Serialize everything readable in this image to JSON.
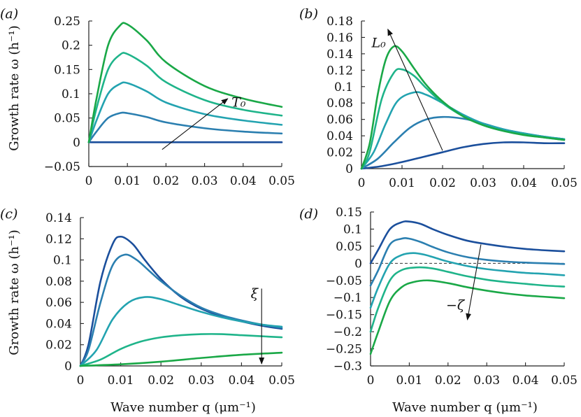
{
  "ylabel": "Growth rate   ω (h⁻¹)",
  "xlabel": "Wave number   q (μm⁻¹)",
  "chart_data": [
    {
      "type": "line",
      "panel": "(a)",
      "annotation": "T₀",
      "annotation_direction": "increasing upward",
      "xlim": [
        0,
        0.05
      ],
      "ylim": [
        -0.05,
        0.25
      ],
      "xticks": [
        "0",
        "0.01",
        "0.02",
        "0.03",
        "0.04",
        "0.05"
      ],
      "yticks": [
        "−0.05",
        "0",
        "0.05",
        "0.1",
        "0.15",
        "0.2",
        "0.25"
      ],
      "ytick_values": [
        -0.05,
        0,
        0.05,
        0.1,
        0.15,
        0.2,
        0.25
      ],
      "series": [
        {
          "name": "T0-1",
          "color": "#1b4f9c",
          "x": [
            0,
            0.05
          ],
          "y": [
            0,
            0
          ]
        },
        {
          "name": "T0-2",
          "color": "#2b7fb0",
          "x": [
            0,
            0.002,
            0.005,
            0.008,
            0.01,
            0.015,
            0.02,
            0.03,
            0.04,
            0.05
          ],
          "y": [
            0,
            0.022,
            0.05,
            0.06,
            0.06,
            0.052,
            0.041,
            0.029,
            0.022,
            0.018
          ]
        },
        {
          "name": "T0-3",
          "color": "#23a3b0",
          "x": [
            0,
            0.002,
            0.005,
            0.008,
            0.01,
            0.015,
            0.02,
            0.03,
            0.04,
            0.05
          ],
          "y": [
            0,
            0.045,
            0.1,
            0.12,
            0.122,
            0.105,
            0.082,
            0.058,
            0.045,
            0.036
          ]
        },
        {
          "name": "T0-4",
          "color": "#1fb48a",
          "x": [
            0,
            0.002,
            0.005,
            0.008,
            0.01,
            0.015,
            0.02,
            0.03,
            0.04,
            0.05
          ],
          "y": [
            0,
            0.07,
            0.15,
            0.18,
            0.182,
            0.158,
            0.124,
            0.087,
            0.067,
            0.055
          ]
        },
        {
          "name": "T0-5",
          "color": "#1aa847",
          "x": [
            0,
            0.002,
            0.005,
            0.008,
            0.01,
            0.015,
            0.02,
            0.03,
            0.04,
            0.05
          ],
          "y": [
            0,
            0.09,
            0.2,
            0.24,
            0.243,
            0.21,
            0.165,
            0.116,
            0.09,
            0.073
          ]
        }
      ],
      "arrow": {
        "from": [
          0.019,
          -0.015
        ],
        "to": [
          0.036,
          0.09
        ]
      },
      "label_at": [
        0.037,
        0.073
      ]
    },
    {
      "type": "line",
      "panel": "(b)",
      "annotation": "L₀",
      "annotation_direction": "increasing upward-left",
      "xlim": [
        0,
        0.05
      ],
      "ylim": [
        0,
        0.18
      ],
      "xticks": [
        "0",
        "0.01",
        "0.02",
        "0.03",
        "0.04",
        "0.05"
      ],
      "yticks": [
        "0",
        "0.02",
        "0.04",
        "0.06",
        "0.08",
        "0.1",
        "0.12",
        "0.14",
        "0.16",
        "0.18"
      ],
      "ytick_values": [
        0,
        0.02,
        0.04,
        0.06,
        0.08,
        0.1,
        0.12,
        0.14,
        0.16,
        0.18
      ],
      "series": [
        {
          "name": "L0-1",
          "color": "#1b4f9c",
          "x": [
            0,
            0.005,
            0.01,
            0.015,
            0.02,
            0.025,
            0.03,
            0.035,
            0.04,
            0.045,
            0.05
          ],
          "y": [
            0,
            0.003,
            0.008,
            0.014,
            0.02,
            0.026,
            0.03,
            0.032,
            0.032,
            0.031,
            0.031
          ]
        },
        {
          "name": "L0-2",
          "color": "#2b7fb0",
          "x": [
            0,
            0.004,
            0.008,
            0.012,
            0.016,
            0.02,
            0.025,
            0.03,
            0.035,
            0.04,
            0.045,
            0.05
          ],
          "y": [
            0,
            0.012,
            0.032,
            0.05,
            0.06,
            0.063,
            0.061,
            0.055,
            0.048,
            0.043,
            0.039,
            0.036
          ]
        },
        {
          "name": "L0-3",
          "color": "#23a3b0",
          "x": [
            0,
            0.003,
            0.006,
            0.009,
            0.013,
            0.016,
            0.02,
            0.025,
            0.03,
            0.035,
            0.04,
            0.045,
            0.05
          ],
          "y": [
            0,
            0.02,
            0.055,
            0.083,
            0.093,
            0.09,
            0.08,
            0.066,
            0.055,
            0.048,
            0.043,
            0.039,
            0.036
          ]
        },
        {
          "name": "L0-4",
          "color": "#1fb48a",
          "x": [
            0,
            0.002,
            0.005,
            0.008,
            0.01,
            0.013,
            0.016,
            0.02,
            0.025,
            0.03,
            0.035,
            0.04,
            0.045,
            0.05
          ],
          "y": [
            0,
            0.02,
            0.085,
            0.117,
            0.121,
            0.113,
            0.098,
            0.08,
            0.064,
            0.053,
            0.046,
            0.042,
            0.038,
            0.035
          ]
        },
        {
          "name": "L0-5",
          "color": "#1aa847",
          "x": [
            0,
            0.002,
            0.004,
            0.006,
            0.008,
            0.01,
            0.013,
            0.016,
            0.02,
            0.025,
            0.03,
            0.035,
            0.04,
            0.045,
            0.05
          ],
          "y": [
            0,
            0.03,
            0.09,
            0.133,
            0.149,
            0.143,
            0.122,
            0.102,
            0.082,
            0.064,
            0.053,
            0.046,
            0.041,
            0.038,
            0.035
          ]
        }
      ],
      "arrow": {
        "from": [
          0.02,
          0.022
        ],
        "to": [
          0.0065,
          0.17
        ]
      },
      "label_at": [
        0.0025,
        0.148
      ]
    },
    {
      "type": "line",
      "panel": "(c)",
      "annotation": "ξ",
      "annotation_direction": "increasing downward",
      "xlim": [
        0,
        0.05
      ],
      "ylim": [
        0,
        0.14
      ],
      "xticks": [
        "0",
        "0.01",
        "0.02",
        "0.03",
        "0.04",
        "0.05"
      ],
      "yticks": [
        "0",
        "0.02",
        "0.04",
        "0.06",
        "0.08",
        "0.1",
        "0.12",
        "0.14"
      ],
      "ytick_values": [
        0,
        0.02,
        0.04,
        0.06,
        0.08,
        0.1,
        0.12,
        0.14
      ],
      "series": [
        {
          "name": "xi-1",
          "color": "#1b4f9c",
          "x": [
            0,
            0.002,
            0.005,
            0.008,
            0.01,
            0.013,
            0.016,
            0.02,
            0.025,
            0.03,
            0.035,
            0.04,
            0.045,
            0.05
          ],
          "y": [
            0,
            0.02,
            0.08,
            0.115,
            0.122,
            0.115,
            0.1,
            0.082,
            0.065,
            0.054,
            0.047,
            0.042,
            0.038,
            0.035
          ]
        },
        {
          "name": "xi-2",
          "color": "#2b7fb0",
          "x": [
            0,
            0.002,
            0.005,
            0.008,
            0.011,
            0.014,
            0.017,
            0.02,
            0.025,
            0.03,
            0.035,
            0.04,
            0.045,
            0.05
          ],
          "y": [
            0,
            0.015,
            0.06,
            0.095,
            0.105,
            0.1,
            0.09,
            0.08,
            0.066,
            0.055,
            0.048,
            0.043,
            0.039,
            0.036
          ]
        },
        {
          "name": "xi-3",
          "color": "#23a3b0",
          "x": [
            0,
            0.004,
            0.008,
            0.012,
            0.016,
            0.02,
            0.025,
            0.03,
            0.035,
            0.04,
            0.045,
            0.05
          ],
          "y": [
            0,
            0.015,
            0.044,
            0.06,
            0.065,
            0.063,
            0.057,
            0.051,
            0.046,
            0.042,
            0.039,
            0.037
          ]
        },
        {
          "name": "xi-4",
          "color": "#1fb48a",
          "x": [
            0,
            0.005,
            0.01,
            0.015,
            0.02,
            0.025,
            0.03,
            0.035,
            0.04,
            0.045,
            0.05
          ],
          "y": [
            0,
            0.006,
            0.016,
            0.023,
            0.027,
            0.029,
            0.03,
            0.03,
            0.029,
            0.028,
            0.027
          ]
        },
        {
          "name": "xi-5",
          "color": "#1aa847",
          "x": [
            0,
            0.01,
            0.02,
            0.03,
            0.04,
            0.05
          ],
          "y": [
            0,
            0.0015,
            0.004,
            0.0075,
            0.0105,
            0.0125
          ]
        }
      ],
      "arrow": {
        "from": [
          0.045,
          0.073
        ],
        "to": [
          0.045,
          0.002
        ]
      },
      "label_at": [
        0.0423,
        0.064
      ]
    },
    {
      "type": "line",
      "panel": "(d)",
      "annotation": "−ζ",
      "annotation_direction": "increasing downward",
      "xlim": [
        0,
        0.05
      ],
      "ylim": [
        -0.3,
        0.15
      ],
      "xticks": [
        "0",
        "0.01",
        "0.02",
        "0.03",
        "0.04",
        "0.05"
      ],
      "yticks": [
        "−0.3",
        "−0.25",
        "−0.2",
        "−0.15",
        "−0.1",
        "−0.05",
        "0",
        "0.05",
        "0.1",
        "0.15"
      ],
      "ytick_values": [
        -0.3,
        -0.25,
        -0.2,
        -0.15,
        -0.1,
        -0.05,
        0,
        0.05,
        0.1,
        0.15
      ],
      "reference_line": 0,
      "series": [
        {
          "name": "zeta-1",
          "color": "#1b4f9c",
          "x": [
            0,
            0.002,
            0.005,
            0.008,
            0.01,
            0.013,
            0.016,
            0.02,
            0.025,
            0.03,
            0.035,
            0.04,
            0.045,
            0.05
          ],
          "y": [
            0,
            0.04,
            0.1,
            0.12,
            0.122,
            0.115,
            0.1,
            0.083,
            0.066,
            0.056,
            0.048,
            0.042,
            0.038,
            0.035
          ]
        },
        {
          "name": "zeta-2",
          "color": "#2b7fb0",
          "x": [
            0,
            0.002,
            0.005,
            0.008,
            0.01,
            0.013,
            0.016,
            0.02,
            0.025,
            0.03,
            0.035,
            0.04,
            0.045,
            0.05
          ],
          "y": [
            -0.065,
            -0.02,
            0.055,
            0.072,
            0.072,
            0.062,
            0.048,
            0.032,
            0.018,
            0.01,
            0.005,
            0.002,
            0.0,
            -0.002
          ]
        },
        {
          "name": "zeta-3",
          "color": "#23a3b0",
          "x": [
            0,
            0.002,
            0.005,
            0.008,
            0.011,
            0.014,
            0.017,
            0.02,
            0.025,
            0.03,
            0.035,
            0.04,
            0.045,
            0.05
          ],
          "y": [
            -0.13,
            -0.07,
            0.0,
            0.024,
            0.03,
            0.025,
            0.015,
            0.005,
            -0.008,
            -0.017,
            -0.023,
            -0.028,
            -0.031,
            -0.035
          ]
        },
        {
          "name": "zeta-4",
          "color": "#1fb48a",
          "x": [
            0,
            0.002,
            0.005,
            0.008,
            0.012,
            0.016,
            0.02,
            0.025,
            0.03,
            0.035,
            0.04,
            0.045,
            0.05
          ],
          "y": [
            -0.2,
            -0.13,
            -0.05,
            -0.02,
            -0.012,
            -0.015,
            -0.025,
            -0.038,
            -0.048,
            -0.055,
            -0.06,
            -0.065,
            -0.068
          ]
        },
        {
          "name": "zeta-5",
          "color": "#1aa847",
          "x": [
            0,
            0.002,
            0.005,
            0.008,
            0.011,
            0.015,
            0.02,
            0.025,
            0.03,
            0.035,
            0.04,
            0.045,
            0.05
          ],
          "y": [
            -0.265,
            -0.2,
            -0.11,
            -0.07,
            -0.055,
            -0.05,
            -0.058,
            -0.07,
            -0.08,
            -0.088,
            -0.094,
            -0.098,
            -0.102
          ]
        }
      ],
      "arrow": {
        "from": [
          0.0285,
          0.055
        ],
        "to": [
          0.025,
          -0.165
        ]
      },
      "label_at": [
        0.0195,
        -0.135
      ]
    }
  ]
}
